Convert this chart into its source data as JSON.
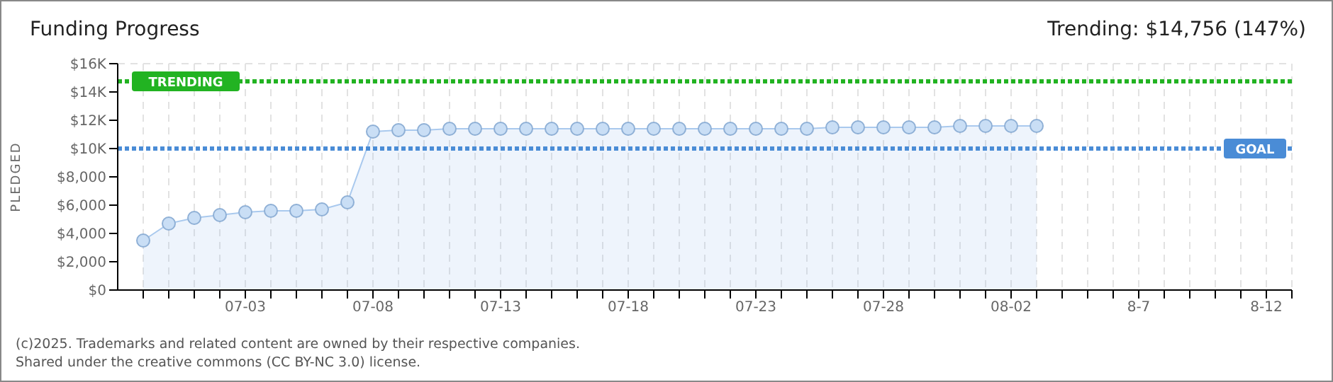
{
  "chart_data": {
    "type": "area",
    "title": "Funding Progress",
    "subtitle": "Trending: $14,756 (147%)",
    "ylabel": "PLEDGED",
    "x": [
      "--06-29",
      "--06-30",
      "--07-01",
      "--07-02",
      "--07-03",
      "--07-04",
      "--07-05",
      "--07-06",
      "--07-07",
      "--07-08",
      "--07-09",
      "--07-10",
      "--07-11",
      "--07-12",
      "--07-13",
      "--07-14",
      "--07-15",
      "--07-16",
      "--07-17",
      "--07-18",
      "--07-19",
      "--07-20",
      "--07-21",
      "--07-22",
      "--07-23",
      "--07-24",
      "--07-25",
      "--07-26",
      "--07-27",
      "--07-28",
      "--07-29",
      "--07-30",
      "--07-31",
      "--08-01",
      "--08-02",
      "--08-03"
    ],
    "series": [
      {
        "color": "#a9c9ee",
        "values": [
          3500,
          4700,
          5100,
          5300,
          5500,
          5600,
          5600,
          5700,
          6200,
          11200,
          11300,
          11300,
          11400,
          11400,
          11400,
          11400,
          11400,
          11400,
          11400,
          11400,
          11400,
          11400,
          11400,
          11400,
          11400,
          11400,
          11400,
          11500,
          11500,
          11500,
          11500,
          11500,
          11600,
          11600,
          11600,
          11600
        ]
      }
    ],
    "xlim": [
      "--06-28",
      "--08-13"
    ],
    "xticks": [
      {
        "value": "--06-29",
        "label": null
      },
      {
        "value": "--06-30",
        "label": null
      },
      {
        "value": "--07-01",
        "label": null
      },
      {
        "value": "--07-02",
        "label": null
      },
      {
        "value": "--07-03",
        "label": "07-03"
      },
      {
        "value": "--07-04",
        "label": null
      },
      {
        "value": "--07-05",
        "label": null
      },
      {
        "value": "--07-06",
        "label": null
      },
      {
        "value": "--07-07",
        "label": null
      },
      {
        "value": "--07-08",
        "label": "07-08"
      },
      {
        "value": "--07-09",
        "label": null
      },
      {
        "value": "--07-10",
        "label": null
      },
      {
        "value": "--07-11",
        "label": null
      },
      {
        "value": "--07-12",
        "label": null
      },
      {
        "value": "--07-13",
        "label": "07-13"
      },
      {
        "value": "--07-14",
        "label": null
      },
      {
        "value": "--07-15",
        "label": null
      },
      {
        "value": "--07-16",
        "label": null
      },
      {
        "value": "--07-17",
        "label": null
      },
      {
        "value": "--07-18",
        "label": "07-18"
      },
      {
        "value": "--07-19",
        "label": null
      },
      {
        "value": "--07-20",
        "label": null
      },
      {
        "value": "--07-21",
        "label": null
      },
      {
        "value": "--07-22",
        "label": null
      },
      {
        "value": "--07-23",
        "label": "07-23"
      },
      {
        "value": "--07-24",
        "label": null
      },
      {
        "value": "--07-25",
        "label": null
      },
      {
        "value": "--07-26",
        "label": null
      },
      {
        "value": "--07-27",
        "label": null
      },
      {
        "value": "--07-28",
        "label": "07-28"
      },
      {
        "value": "--07-29",
        "label": null
      },
      {
        "value": "--07-30",
        "label": null
      },
      {
        "value": "--07-31",
        "label": null
      },
      {
        "value": "--08-01",
        "label": null
      },
      {
        "value": "--08-02",
        "label": "08-02"
      },
      {
        "value": "--08-03",
        "label": null
      },
      {
        "value": "--08-04",
        "label": null
      },
      {
        "value": "--08-05",
        "label": null
      },
      {
        "value": "--08-06",
        "label": null
      },
      {
        "value": "--08-07",
        "label": "8-7"
      },
      {
        "value": "--08-08",
        "label": null
      },
      {
        "value": "--08-09",
        "label": null
      },
      {
        "value": "--08-10",
        "label": null
      },
      {
        "value": "--08-11",
        "label": null
      },
      {
        "value": "--08-12",
        "label": "8-12"
      },
      {
        "value": "--08-13",
        "label": null
      }
    ],
    "ylim": [
      0,
      16000
    ],
    "yticks": [
      {
        "value": 0,
        "label": "$0"
      },
      {
        "value": 2000,
        "label": "$2,000"
      },
      {
        "value": 4000,
        "label": "$4,000"
      },
      {
        "value": 6000,
        "label": "$6,000"
      },
      {
        "value": 8000,
        "label": "$8,000"
      },
      {
        "value": 10000,
        "label": "$10K"
      },
      {
        "value": 12000,
        "label": "$12K"
      },
      {
        "value": 14000,
        "label": "$14K"
      },
      {
        "value": 16000,
        "label": "$16K"
      }
    ],
    "ref_lines": [
      {
        "axis": "y",
        "value": 10000,
        "label": "GOAL",
        "color": "#4a8cd6",
        "line_style": "dotted"
      },
      {
        "axis": "y",
        "value": 14756,
        "label": "TRENDING",
        "color": "#22b322",
        "line_style": "dotted"
      }
    ],
    "grid": true,
    "marker": "circle",
    "line_style": "solid",
    "annotations": [
      "(c)2025. Trademarks and related content are owned by their respective companies.",
      "Shared under the creative commons (CC BY-NC 3.0) license."
    ]
  }
}
